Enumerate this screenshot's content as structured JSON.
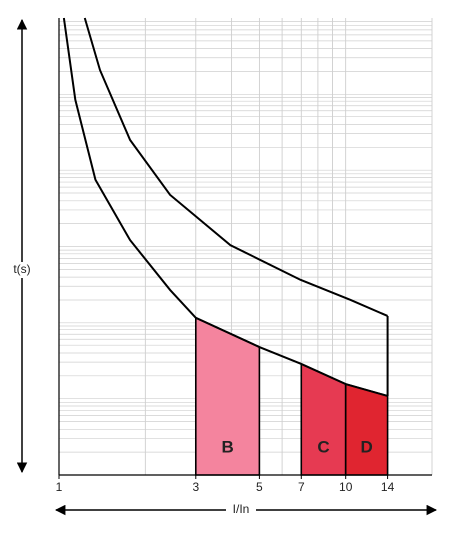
{
  "chart_data": {
    "type": "trip-curve",
    "ylabel": "t(s)",
    "xlabel": "I/In",
    "xlog": true,
    "xlim": [
      1,
      20
    ],
    "ylim": [
      0,
      100
    ],
    "xticks": [
      1,
      3,
      5,
      7,
      10,
      14
    ],
    "xgrid": [
      1,
      2,
      3,
      4,
      5,
      6,
      7,
      8,
      9,
      10,
      20
    ],
    "ygrid": [
      5.0,
      8.0,
      10.0,
      11.7,
      13.0,
      14.1,
      15.1,
      15.9,
      16.7,
      21.7,
      24.7,
      26.7,
      28.4,
      29.7,
      30.8,
      31.8,
      32.6,
      33.3,
      38.3,
      41.3,
      43.3,
      45.0,
      46.3,
      47.4,
      48.4,
      49.2,
      50,
      55.0,
      58.0,
      60.0,
      61.7,
      63.0,
      64.1,
      65.1,
      65.9,
      66.7,
      71.7,
      74.7,
      76.7,
      78.4,
      79.7,
      80.8,
      81.8,
      82.6,
      83.3,
      88.3,
      91.3,
      93.3,
      95.0,
      96.3,
      97.4,
      98.4,
      99.2
    ],
    "series": [
      {
        "color": "#000000",
        "x": [
          1.04,
          1.14,
          1.34,
          1.77,
          2.44,
          3,
          5,
          7,
          10,
          14
        ],
        "values": [
          100,
          82.1,
          64.6,
          51.4,
          40.5,
          34.4,
          28.0,
          24.3,
          19.9,
          17.3
        ]
      },
      {
        "color": "#000000",
        "x": [
          1.23,
          1.39,
          1.77,
          2.44,
          3.96,
          6.96,
          10.4,
          14
        ],
        "values": [
          100,
          88.6,
          73.3,
          61.3,
          50.3,
          42.7,
          38.3,
          34.8
        ]
      }
    ],
    "zones": [
      {
        "label": "B",
        "from": 3,
        "to": 5,
        "color": "#f4849e"
      },
      {
        "label": "C",
        "from": 7,
        "to": 10,
        "color": "#e63a52"
      },
      {
        "label": "D",
        "from": 10,
        "to": 14,
        "color": "#e02530"
      }
    ]
  }
}
